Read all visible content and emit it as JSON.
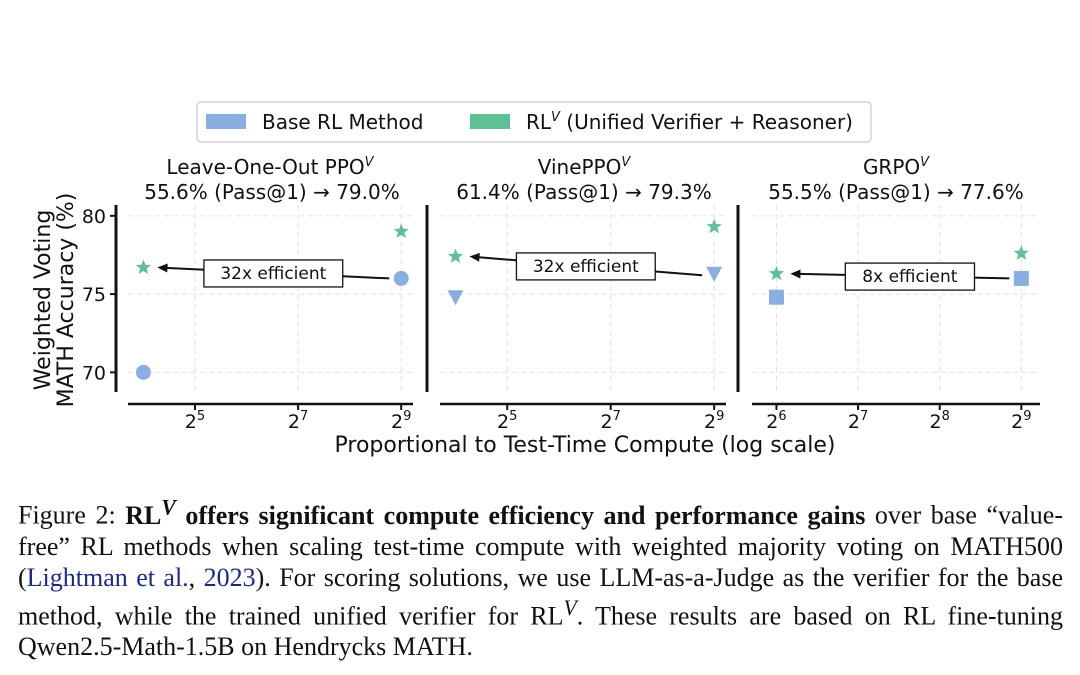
{
  "legend": {
    "items": [
      {
        "label": "Base RL Method",
        "sup": "",
        "rest": "",
        "color": "#8aaee0"
      },
      {
        "label": "RL",
        "sup": "V",
        "rest": " (Unified Verifier + Reasoner)",
        "color": "#5fbf95"
      }
    ]
  },
  "chart_data": [
    {
      "type": "scatter",
      "title": "Leave-One-Out PPO",
      "title_sup": "V",
      "subtitle_left": "55.6% (Pass@1)",
      "subtitle_arrow": "→",
      "subtitle_right": "79.0%",
      "x_scale": "log2",
      "xlim": [
        13,
        600
      ],
      "ylim": [
        69,
        80.5
      ],
      "x_ticks": [
        {
          "value": 32,
          "base": "2",
          "exp": "5"
        },
        {
          "value": 128,
          "base": "2",
          "exp": "7"
        },
        {
          "value": 512,
          "base": "2",
          "exp": "9"
        }
      ],
      "y_ticks": [
        70,
        75,
        80
      ],
      "grid": true,
      "series": [
        {
          "name": "Base RL Method",
          "marker": "circle",
          "color": "#8aaee0",
          "points": [
            {
              "x": 16,
              "y": 70.0
            },
            {
              "x": 512,
              "y": 76.0
            }
          ]
        },
        {
          "name": "RL^V (Unified Verifier + Reasoner)",
          "marker": "star",
          "color": "#5fbf95",
          "points": [
            {
              "x": 16,
              "y": 76.7
            },
            {
              "x": 512,
              "y": 79.0
            }
          ]
        }
      ],
      "annotation": {
        "text": "32x efficient",
        "from": {
          "x": 512,
          "y": 76.0
        },
        "to": {
          "x": 16,
          "y": 76.7
        }
      }
    },
    {
      "type": "scatter",
      "title": "VinePPO",
      "title_sup": "V",
      "subtitle_left": "61.4% (Pass@1)",
      "subtitle_arrow": "→",
      "subtitle_right": "79.3%",
      "x_scale": "log2",
      "xlim": [
        13,
        600
      ],
      "ylim": [
        69,
        80.5
      ],
      "x_ticks": [
        {
          "value": 32,
          "base": "2",
          "exp": "5"
        },
        {
          "value": 128,
          "base": "2",
          "exp": "7"
        },
        {
          "value": 512,
          "base": "2",
          "exp": "9"
        }
      ],
      "y_ticks": [
        70,
        75,
        80
      ],
      "grid": true,
      "series": [
        {
          "name": "Base RL Method",
          "marker": "triangle-down",
          "color": "#8aaee0",
          "points": [
            {
              "x": 16,
              "y": 74.8
            },
            {
              "x": 512,
              "y": 76.3
            }
          ]
        },
        {
          "name": "RL^V (Unified Verifier + Reasoner)",
          "marker": "star",
          "color": "#5fbf95",
          "points": [
            {
              "x": 16,
              "y": 77.4
            },
            {
              "x": 512,
              "y": 79.3
            }
          ]
        }
      ],
      "annotation": {
        "text": "32x efficient",
        "from": {
          "x": 512,
          "y": 76.2
        },
        "to": {
          "x": 16,
          "y": 77.4
        }
      }
    },
    {
      "type": "scatter",
      "title": "GRPO",
      "title_sup": "V",
      "subtitle_left": "55.5% (Pass@1)",
      "subtitle_arrow": "→",
      "subtitle_right": "77.6%",
      "x_scale": "log2",
      "xlim": [
        52,
        600
      ],
      "ylim": [
        69,
        80.5
      ],
      "x_ticks": [
        {
          "value": 64,
          "base": "2",
          "exp": "6"
        },
        {
          "value": 128,
          "base": "2",
          "exp": "7"
        },
        {
          "value": 256,
          "base": "2",
          "exp": "8"
        },
        {
          "value": 512,
          "base": "2",
          "exp": "9"
        }
      ],
      "y_ticks": [
        70,
        75,
        80
      ],
      "grid": true,
      "series": [
        {
          "name": "Base RL Method",
          "marker": "square",
          "color": "#8aaee0",
          "points": [
            {
              "x": 64,
              "y": 74.8
            },
            {
              "x": 512,
              "y": 76.0
            }
          ]
        },
        {
          "name": "RL^V (Unified Verifier + Reasoner)",
          "marker": "star",
          "color": "#5fbf95",
          "points": [
            {
              "x": 64,
              "y": 76.3
            },
            {
              "x": 512,
              "y": 77.6
            }
          ]
        }
      ],
      "annotation": {
        "text": "8x efficient",
        "from": {
          "x": 512,
          "y": 76.0
        },
        "to": {
          "x": 64,
          "y": 76.3
        }
      }
    }
  ],
  "axes": {
    "ylabel_line1": "Weighted Voting",
    "ylabel_line2": "MATH Accuracy (%)",
    "xlabel": "Proportional to Test-Time Compute (log scale)"
  },
  "caption": {
    "lead": "Figure 2: ",
    "bold_rl": "RL",
    "bold_sup": "V",
    "bold_rest": " offers significant compute efficiency and performance gains",
    "part1": " over base “value-free” RL methods when scaling test-time compute with weighted majority voting on MATH500 (",
    "cite_name": "Lightman et al.",
    "cite_sep": ", ",
    "cite_year": "2023",
    "part2": "). For scoring solutions, we use LLM-as-a-Judge as the verifier for the base method, while the trained unified verifier for RL",
    "sup2": "V",
    "part3": ". These results are based on RL fine-tuning Qwen2.5-Math-1.5B on Hendrycks MATH."
  }
}
